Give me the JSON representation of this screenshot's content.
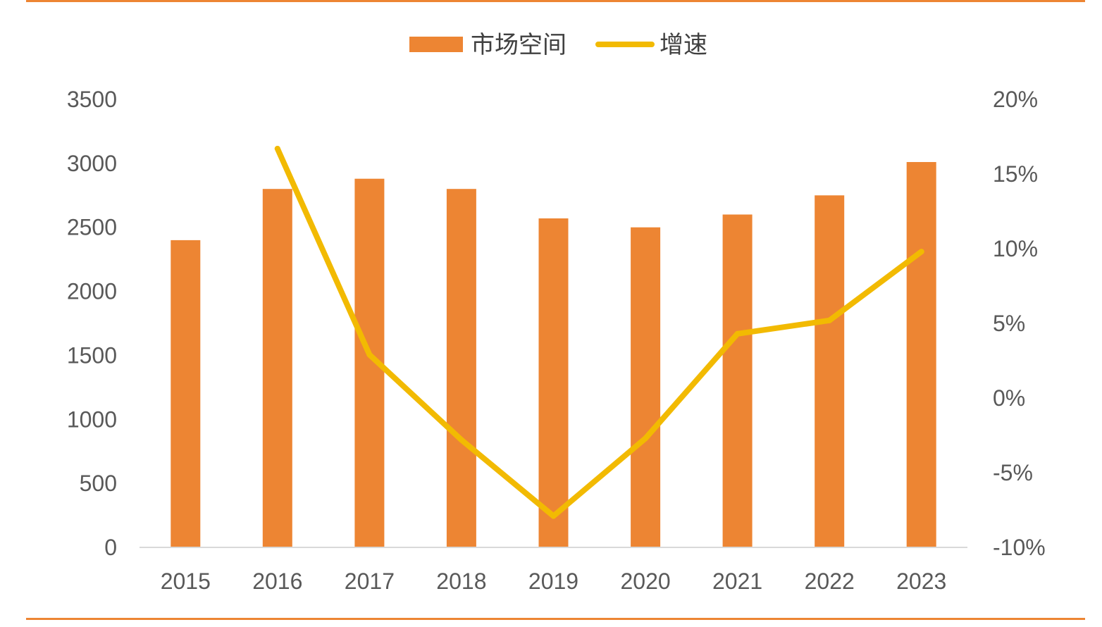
{
  "chart_data": {
    "type": "bar",
    "categories": [
      "2015",
      "2016",
      "2017",
      "2018",
      "2019",
      "2020",
      "2021",
      "2022",
      "2023"
    ],
    "series": [
      {
        "name": "市场空间",
        "type": "bar",
        "axis": "left",
        "values": [
          2400,
          2800,
          2880,
          2800,
          2570,
          2500,
          2600,
          2750,
          3010
        ]
      },
      {
        "name": "增速",
        "type": "line",
        "axis": "right",
        "values": [
          null,
          16.7,
          2.9,
          -2.8,
          -7.9,
          -2.7,
          4.3,
          5.2,
          9.8
        ]
      }
    ],
    "y_left": {
      "lim": [
        0,
        3500
      ],
      "ticks": [
        0,
        500,
        1000,
        1500,
        2000,
        2500,
        3000,
        3500
      ],
      "tick_labels": [
        "0",
        "500",
        "1000",
        "1500",
        "2000",
        "2500",
        "3000",
        "3500"
      ]
    },
    "y_right": {
      "lim": [
        -10,
        20
      ],
      "ticks": [
        -10,
        -5,
        0,
        5,
        10,
        15,
        20
      ],
      "tick_labels": [
        "-10%",
        "-5%",
        "0%",
        "5%",
        "10%",
        "15%",
        "20%"
      ]
    },
    "legend": "top-center",
    "grid": false,
    "colors": {
      "bar": "#ED8533",
      "line": "#F2BA02",
      "frame": "#ED8533",
      "axis": "#D9D9D9",
      "text": "#595959"
    }
  }
}
